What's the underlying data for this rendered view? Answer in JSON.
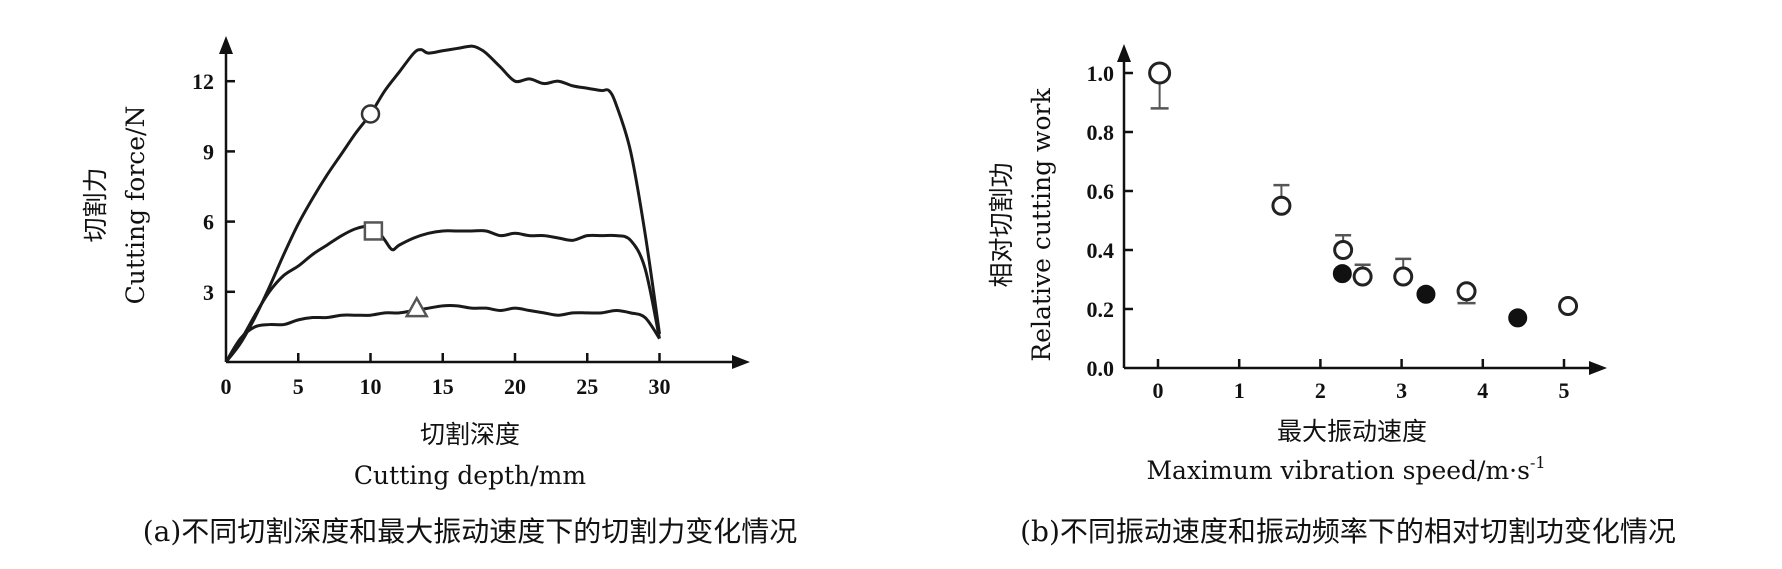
{
  "chart_data": [
    {
      "type": "line",
      "caption": "(a)不同切割深度和最大振动速度下的切割力变化情况",
      "xlabel_cn": "切割深度",
      "xlabel_en": "Cutting depth/mm",
      "ylabel_cn": "切割力",
      "ylabel_en": "Cutting force/N",
      "xlim": [
        0,
        31
      ],
      "ylim": [
        0,
        13.5
      ],
      "xticks": [
        0,
        5,
        10,
        15,
        20,
        25,
        30
      ],
      "yticks": [
        3,
        6,
        9,
        12
      ],
      "series": [
        {
          "marker": "circle",
          "marker_at": [
            10,
            10.6
          ],
          "x": [
            0,
            1,
            2,
            3,
            4,
            5,
            6,
            7,
            8,
            9,
            10,
            11,
            12,
            13,
            13.5,
            14,
            15,
            16,
            17,
            17.5,
            18,
            19,
            20,
            21,
            22,
            23,
            24,
            25,
            26,
            26.5,
            27,
            28,
            29,
            30
          ],
          "y": [
            0,
            0.8,
            1.9,
            3.2,
            4.6,
            5.9,
            7.0,
            8.0,
            8.9,
            9.8,
            10.6,
            11.6,
            12.4,
            13.2,
            13.35,
            13.2,
            13.3,
            13.4,
            13.5,
            13.4,
            13.2,
            12.6,
            12.0,
            12.1,
            11.9,
            12.0,
            11.8,
            11.7,
            11.6,
            11.6,
            11.0,
            9.0,
            5.5,
            1.2
          ]
        },
        {
          "marker": "square",
          "marker_at": [
            10.2,
            5.6
          ],
          "x": [
            0,
            1,
            2,
            3,
            4,
            5,
            6,
            7,
            8,
            9,
            10,
            10.5,
            11,
            11.5,
            12,
            13,
            14,
            15,
            16,
            17,
            18,
            19,
            20,
            21,
            22,
            23,
            24,
            25,
            26,
            27,
            28,
            29,
            30
          ],
          "y": [
            0,
            0.9,
            2.0,
            3.0,
            3.7,
            4.1,
            4.6,
            5.0,
            5.4,
            5.7,
            5.8,
            5.6,
            5.2,
            4.8,
            5.0,
            5.3,
            5.5,
            5.6,
            5.6,
            5.6,
            5.6,
            5.4,
            5.5,
            5.4,
            5.4,
            5.3,
            5.2,
            5.4,
            5.4,
            5.4,
            5.2,
            4.0,
            1.0
          ]
        },
        {
          "marker": "triangle",
          "marker_at": [
            13.2,
            2.3
          ],
          "x": [
            0,
            1,
            2,
            3,
            4,
            5,
            6,
            7,
            8,
            9,
            10,
            11,
            12,
            13,
            14,
            15,
            16,
            17,
            18,
            19,
            20,
            21,
            22,
            23,
            24,
            25,
            26,
            27,
            28,
            29,
            30
          ],
          "y": [
            0,
            1.0,
            1.5,
            1.6,
            1.6,
            1.8,
            1.9,
            1.9,
            2.0,
            2.0,
            2.0,
            2.1,
            2.1,
            2.2,
            2.3,
            2.4,
            2.4,
            2.3,
            2.3,
            2.2,
            2.3,
            2.2,
            2.1,
            2.0,
            2.1,
            2.1,
            2.1,
            2.2,
            2.1,
            1.9,
            1.0
          ]
        }
      ]
    },
    {
      "type": "scatter",
      "caption": "(b)不同振动速度和振动频率下的相对切割功变化情况",
      "xlabel_cn": "最大振动速度",
      "xlabel_en": "Maximum vibration speed/m·s",
      "xlabel_sup": "-1",
      "ylabel_cn": "相对切割功",
      "ylabel_en": "Relative cutting work",
      "xlim": [
        0,
        5.4
      ],
      "ylim": [
        0,
        1.1
      ],
      "xticks": [
        "0",
        "1",
        "2",
        "3",
        "4",
        "5"
      ],
      "yticks": [
        "0.0",
        "0.2",
        "0.4",
        "0.6",
        "0.8",
        "1.0"
      ],
      "series": [
        {
          "marker": "open-circle",
          "points": [
            {
              "x": 0.02,
              "y": 1.0,
              "err_low": 0.12
            },
            {
              "x": 1.52,
              "y": 0.55,
              "err_high": 0.07
            },
            {
              "x": 2.28,
              "y": 0.4,
              "err_high": 0.05
            },
            {
              "x": 2.52,
              "y": 0.31,
              "err_high": 0.04
            },
            {
              "x": 3.02,
              "y": 0.31,
              "err_high": 0.06
            },
            {
              "x": 3.8,
              "y": 0.26,
              "err_low": 0.04
            },
            {
              "x": 5.05,
              "y": 0.21
            }
          ]
        },
        {
          "marker": "filled-circle",
          "points": [
            {
              "x": 2.27,
              "y": 0.32
            },
            {
              "x": 3.3,
              "y": 0.25
            },
            {
              "x": 4.43,
              "y": 0.17
            }
          ]
        }
      ]
    }
  ]
}
